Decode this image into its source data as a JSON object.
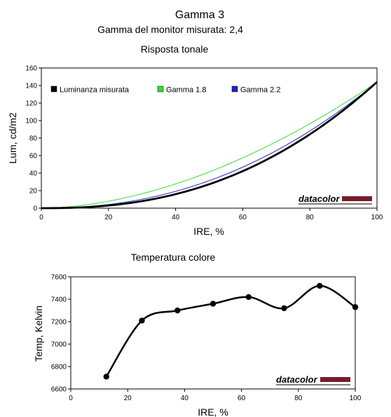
{
  "header": {
    "title": "Gamma 3",
    "subtitle": "Gamma del monitor misurata: 2,4"
  },
  "logo_text": "datacolor",
  "colors": {
    "luminanza": "#000000",
    "gamma18": "#33dd33",
    "gamma22": "#2222cc",
    "temperatura": "#000000",
    "logo_bar": "#7a1a2a"
  },
  "chart_data": [
    {
      "type": "line",
      "title": "Risposta tonale",
      "xlabel": "IRE, %",
      "ylabel": "Lum, cd/m2",
      "xlim": [
        0,
        100
      ],
      "ylim": [
        0,
        160
      ],
      "xticks": [
        0,
        20,
        40,
        60,
        80,
        100
      ],
      "yticks": [
        0,
        20,
        40,
        60,
        80,
        100,
        120,
        140,
        160
      ],
      "grid": false,
      "legend": "top",
      "peak": 144,
      "series": [
        {
          "name": "Luminanza misurata",
          "gamma": 2.4,
          "color": "#000000"
        },
        {
          "name": "Gamma 1.8",
          "gamma": 1.8,
          "color": "#33dd33"
        },
        {
          "name": "Gamma 2.2",
          "gamma": 2.2,
          "color": "#2222cc"
        }
      ]
    },
    {
      "type": "line",
      "title": "Temperatura colore",
      "xlabel": "IRE, %",
      "ylabel": "Temp, Kelvin",
      "xlim": [
        0,
        100
      ],
      "ylim": [
        6600,
        7600
      ],
      "xticks": [
        0,
        20,
        40,
        60,
        80,
        100
      ],
      "yticks": [
        6600,
        6800,
        7000,
        7200,
        7400,
        7600
      ],
      "grid": false,
      "series": [
        {
          "x": [
            12.5,
            25,
            37.5,
            50,
            62.5,
            75,
            87.5,
            100
          ],
          "y": [
            6710,
            7210,
            7300,
            7360,
            7420,
            7320,
            7520,
            7330
          ]
        }
      ]
    }
  ]
}
